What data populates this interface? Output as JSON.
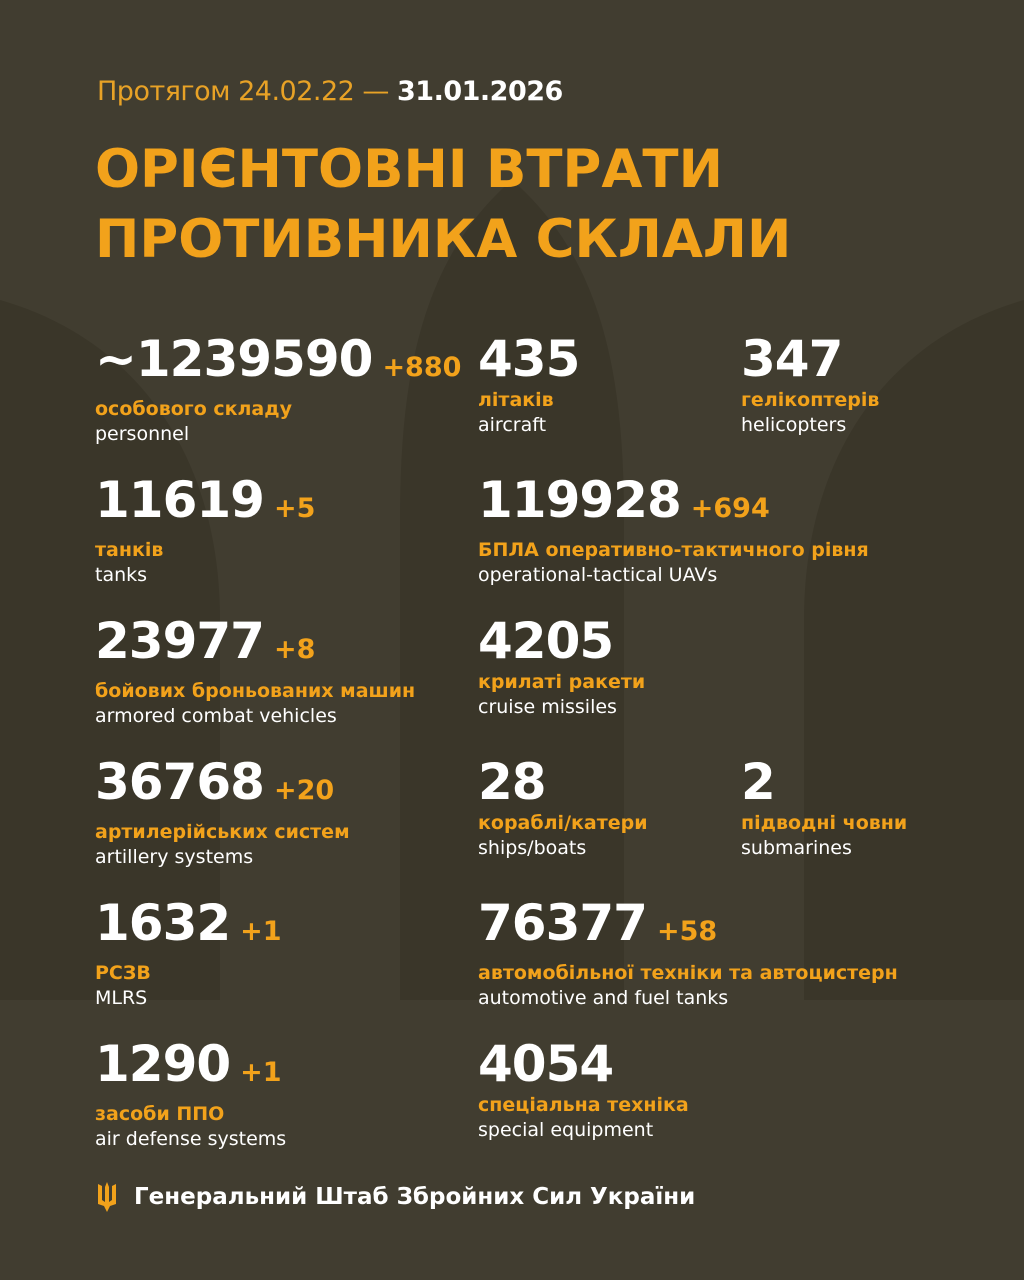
{
  "header": {
    "period_prefix": "Протягом 24.02.22 —",
    "period_end": "31.01.2026",
    "title_line1": "ОРІЄНТОВНІ ВТРАТИ",
    "title_line2": "ПРОТИВНИКА СКЛАЛИ"
  },
  "stats": [
    {
      "value": "~1239590",
      "increment": "+880",
      "label_ua": "особового складу",
      "label_en": "personnel"
    },
    {
      "value": "435",
      "increment": "",
      "label_ua": "літаків",
      "label_en": "aircraft"
    },
    {
      "value": "347",
      "increment": "",
      "label_ua": "гелікоптерів",
      "label_en": "helicopters"
    },
    {
      "value": "11619",
      "increment": "+5",
      "label_ua": "танків",
      "label_en": "tanks"
    },
    {
      "value": "119928",
      "increment": "+694",
      "label_ua": "БПЛА оперативно-тактичного рівня",
      "label_en": "operational-tactical UAVs"
    },
    {
      "value": "23977",
      "increment": "+8",
      "label_ua": "бойових броньованих машин",
      "label_en": "armored combat vehicles"
    },
    {
      "value": "4205",
      "increment": "",
      "label_ua": "крилаті ракети",
      "label_en": "cruise missiles"
    },
    {
      "value": "36768",
      "increment": "+20",
      "label_ua": "артилерійських систем",
      "label_en": "artillery systems"
    },
    {
      "value": "28",
      "increment": "",
      "label_ua": "кораблі/катери",
      "label_en": "ships/boats"
    },
    {
      "value": "2",
      "increment": "",
      "label_ua": "підводні човни",
      "label_en": "submarines"
    },
    {
      "value": "1632",
      "increment": "+1",
      "label_ua": "РСЗВ",
      "label_en": "MLRS"
    },
    {
      "value": "76377",
      "increment": "+58",
      "label_ua": "автомобільної техніки та автоцистерн",
      "label_en": "automotive and fuel tanks"
    },
    {
      "value": "1290",
      "increment": "+1",
      "label_ua": "засоби ППО",
      "label_en": "air defense systems"
    },
    {
      "value": "4054",
      "increment": "",
      "label_ua": "спеціальна техніка",
      "label_en": "special equipment"
    }
  ],
  "footer": {
    "text": "Генеральний Штаб Збройних Сил України",
    "icon": "trident-icon"
  },
  "colors": {
    "background": "#413d30",
    "accent": "#f2a21b",
    "text": "#ffffff"
  }
}
